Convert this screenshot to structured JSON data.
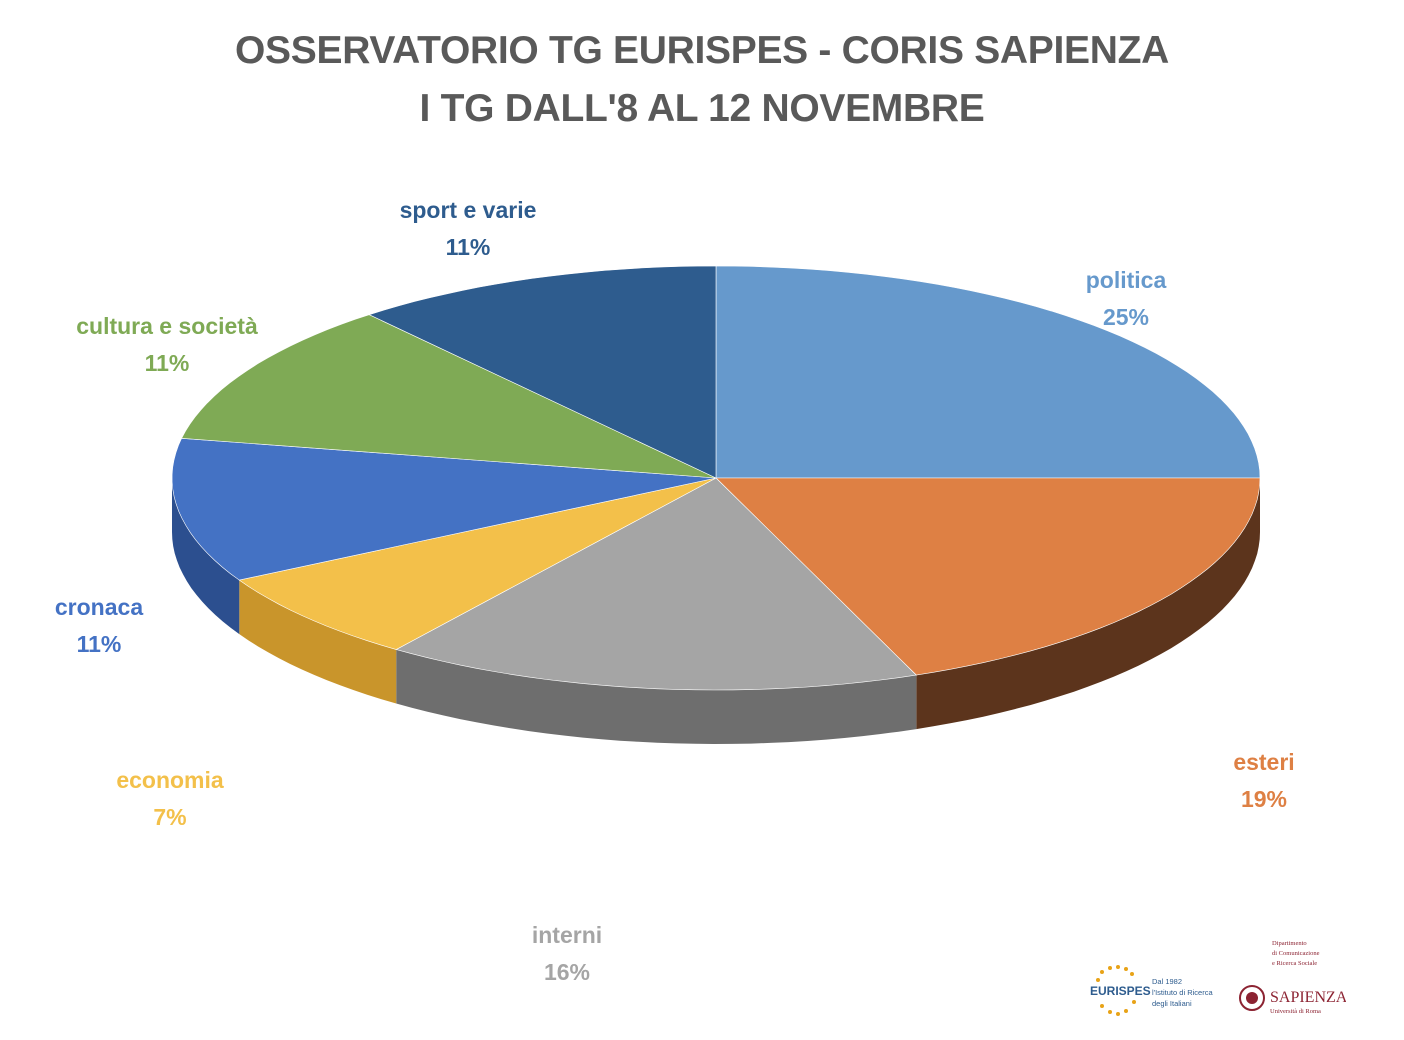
{
  "title": {
    "line1": "OSSERVATORIO TG EURISPES - CORIS SAPIENZA",
    "line2": "I TG DALL'8 AL 12 NOVEMBRE"
  },
  "chart_data": {
    "type": "pie",
    "title": "OSSERVATORIO TG EURISPES - CORIS SAPIENZA / I TG DALL'8 AL 12 NOVEMBRE",
    "slices": [
      {
        "label": "politica",
        "value": 25,
        "value_label": "25%",
        "color": "#6699CC",
        "side_color": "#3F6189"
      },
      {
        "label": "esteri",
        "value": 19,
        "value_label": "19%",
        "color": "#DE8044",
        "side_color": "#5C341C"
      },
      {
        "label": "interni",
        "value": 16,
        "value_label": "16%",
        "color": "#A5A5A5",
        "side_color": "#6E6E6E"
      },
      {
        "label": "economia",
        "value": 7,
        "value_label": "7%",
        "color": "#F3C04A",
        "side_color": "#C9952B"
      },
      {
        "label": "cronaca",
        "value": 11,
        "value_label": "11%",
        "color": "#4472C4",
        "side_color": "#2C4F8F"
      },
      {
        "label": "cultura e società",
        "value": 11,
        "value_label": "11%",
        "color": "#7FAA55",
        "side_color": "#56773A"
      },
      {
        "label": "sport e varie",
        "value": 11,
        "value_label": "11%",
        "color": "#2E5C8E",
        "side_color": "#1E3D60"
      }
    ],
    "label_colors": {
      "politica": "#6699CC",
      "esteri": "#DE8044",
      "interni": "#A5A5A5",
      "economia": "#F3C04A",
      "cronaca": "#4472C4",
      "cultura e società": "#7FAA55",
      "sport e varie": "#2E5C8E"
    },
    "legend": "none",
    "style": "3d-tilted"
  },
  "logos": {
    "eurispes": {
      "name": "EURISPES",
      "tagline_1": "Dal 1982",
      "tagline_2": "l'Istituto di Ricerca",
      "tagline_3": "degli Italiani"
    },
    "sapienza": {
      "dept_1": "Dipartimento",
      "dept_2": "di Comunicazione",
      "dept_3": "e Ricerca Sociale",
      "name": "SAPIENZA",
      "subtitle": "Università di Roma"
    }
  }
}
